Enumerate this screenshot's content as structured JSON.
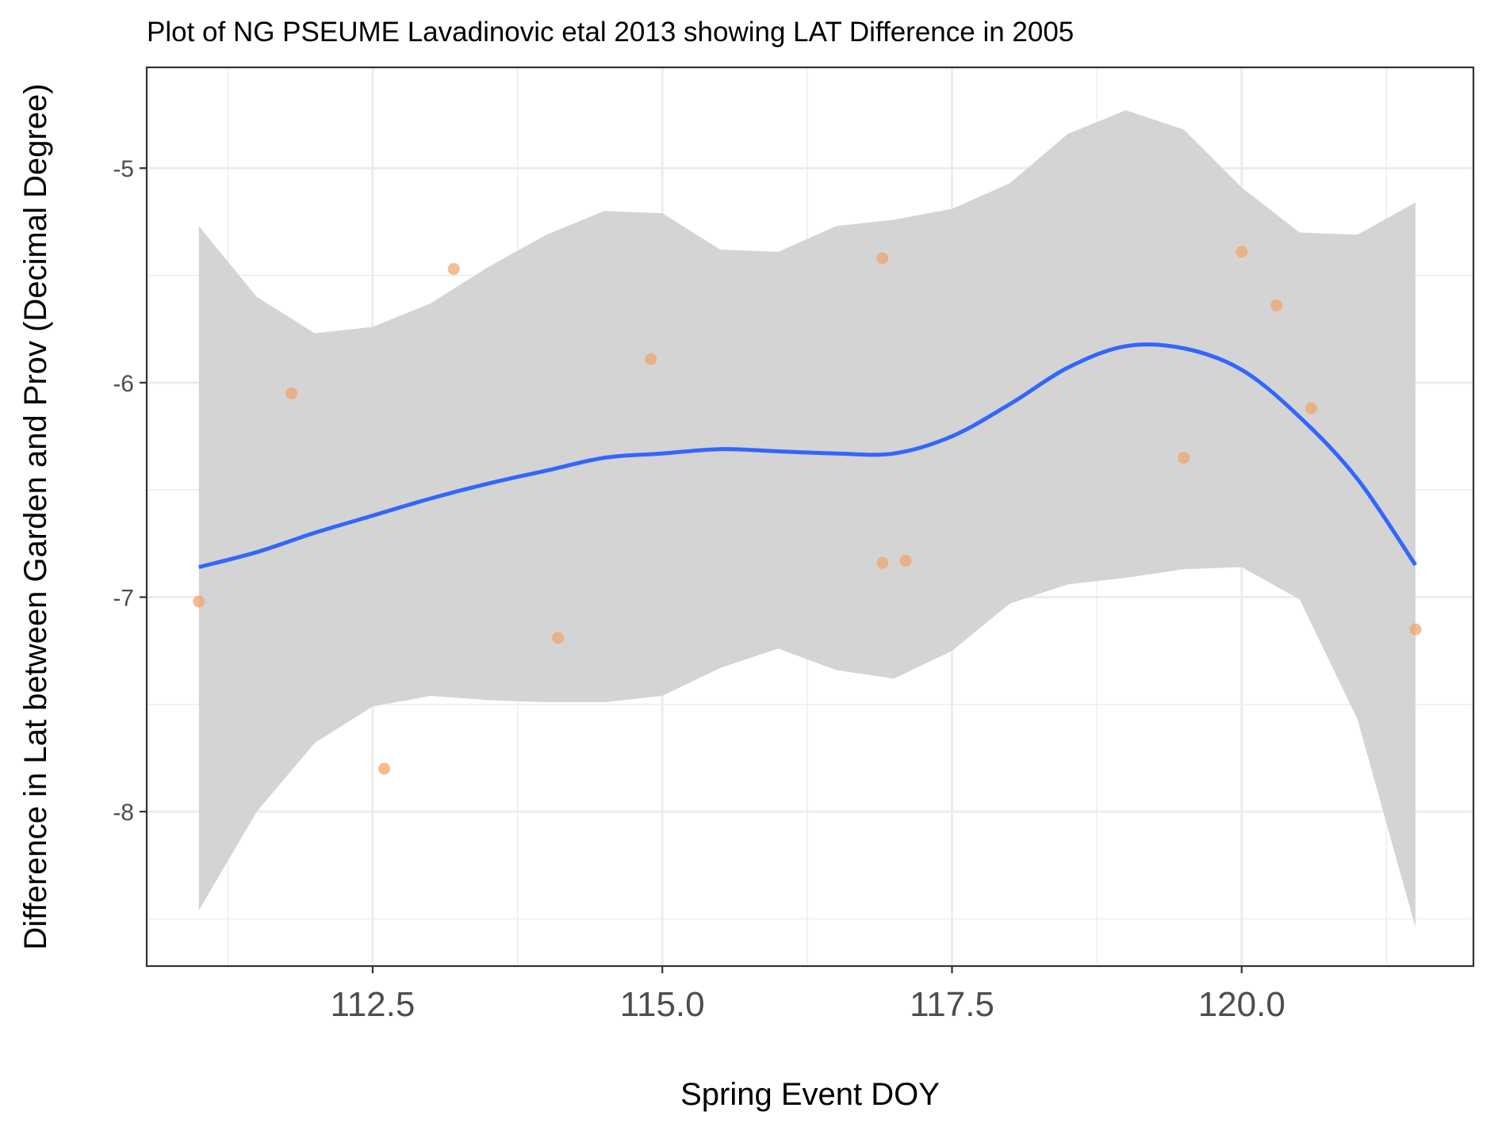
{
  "chart_data": {
    "type": "scatter",
    "title": "Plot of NG PSEUME Lavadinovic etal 2013 showing LAT Difference in 2005",
    "xlabel": "Spring Event DOY",
    "ylabel": "Difference in Lat between Garden and Prov (Decimal Degree)",
    "xlim": [
      110.55,
      122.0
    ],
    "ylim": [
      -8.72,
      -4.53
    ],
    "x_ticks": [
      112.5,
      115.0,
      117.5,
      120.0
    ],
    "x_tick_labels": [
      "112.5",
      "115.0",
      "117.5",
      "120.0"
    ],
    "y_ticks": [
      -5,
      -6,
      -7,
      -8
    ],
    "y_tick_labels": [
      "-5",
      "-6",
      "-7",
      "-8"
    ],
    "grid": true,
    "colors": {
      "points": "#f0a56b",
      "smooth_line": "#3366ff",
      "confidence_band": "#d4d4d4",
      "grid": "#ebebeb"
    },
    "points": [
      {
        "x": 111.0,
        "y": -7.02
      },
      {
        "x": 111.8,
        "y": -6.05
      },
      {
        "x": 112.6,
        "y": -7.8
      },
      {
        "x": 113.2,
        "y": -5.47
      },
      {
        "x": 114.1,
        "y": -7.19
      },
      {
        "x": 114.9,
        "y": -5.89
      },
      {
        "x": 116.9,
        "y": -5.42
      },
      {
        "x": 116.9,
        "y": -6.84
      },
      {
        "x": 117.1,
        "y": -6.83
      },
      {
        "x": 119.5,
        "y": -6.35
      },
      {
        "x": 120.0,
        "y": -5.39
      },
      {
        "x": 120.3,
        "y": -5.64
      },
      {
        "x": 120.6,
        "y": -6.12
      },
      {
        "x": 121.5,
        "y": -7.15
      }
    ],
    "smooth": {
      "method": "loess",
      "x": [
        111.0,
        111.5,
        112.0,
        112.5,
        113.0,
        113.5,
        114.0,
        114.5,
        115.0,
        115.5,
        116.0,
        116.5,
        117.0,
        117.5,
        118.0,
        118.5,
        119.0,
        119.5,
        120.0,
        120.5,
        121.0,
        121.5
      ],
      "y": [
        -6.86,
        -6.79,
        -6.7,
        -6.62,
        -6.54,
        -6.47,
        -6.41,
        -6.35,
        -6.33,
        -6.31,
        -6.32,
        -6.33,
        -6.33,
        -6.25,
        -6.1,
        -5.93,
        -5.83,
        -5.84,
        -5.94,
        -6.16,
        -6.45,
        -6.85
      ],
      "upper": [
        -5.27,
        -5.6,
        -5.77,
        -5.74,
        -5.63,
        -5.46,
        -5.31,
        -5.2,
        -5.21,
        -5.38,
        -5.39,
        -5.27,
        -5.24,
        -5.19,
        -5.07,
        -4.84,
        -4.73,
        -4.82,
        -5.09,
        -5.3,
        -5.31,
        -5.16
      ],
      "lower": [
        -8.46,
        -8.0,
        -7.68,
        -7.51,
        -7.46,
        -7.48,
        -7.49,
        -7.49,
        -7.46,
        -7.33,
        -7.24,
        -7.34,
        -7.38,
        -7.25,
        -7.03,
        -6.94,
        -6.91,
        -6.87,
        -6.86,
        -7.01,
        -7.57,
        -8.54
      ]
    }
  }
}
